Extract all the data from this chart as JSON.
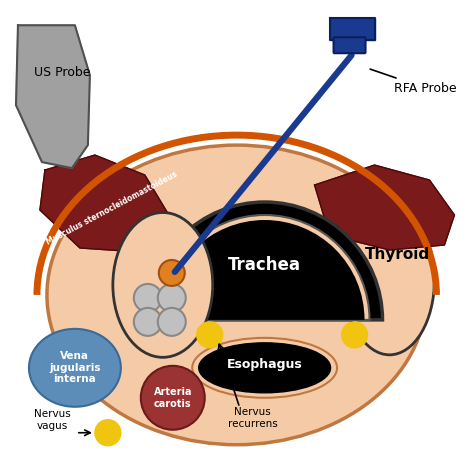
{
  "bg_color": "#ffffff",
  "skin_color": "#F5CBA7",
  "trachea_color": "#000000",
  "muscle_color": "#7B1A1A",
  "blue_probe": "#1A3A8F",
  "blue_circle": "#5B8DB8",
  "red_circle": "#9B3333",
  "yellow_circle": "#F1C40F",
  "gray_node": "#C0C0C0",
  "orange_node": "#E08020",
  "orange_ring": "#D35400",
  "labels": {
    "us_probe": "US Probe",
    "rfa_probe": "RFA Probe",
    "trachea": "Trachea",
    "thyroid": "Thyroid",
    "esophagus": "Esophagus",
    "musculus": "Musculus sternocleidomastoideus",
    "vena": "Vena\njugularis\ninterna",
    "arteria": "Arteria\ncarotis",
    "nervus_vagus": "Nervus\nvagus",
    "nervus_rec": "Nervus\nrecurrens"
  }
}
